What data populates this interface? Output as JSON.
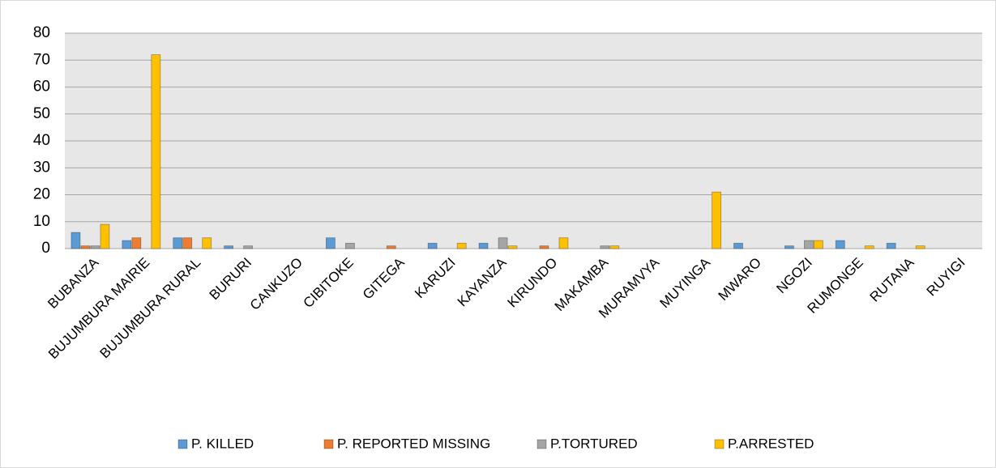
{
  "chart_data": {
    "type": "bar",
    "categories": [
      "BUBANZA",
      "BUJUMBURA MAIRIE",
      "BUJUMBURA RURAL",
      "BURURI",
      "CANKUZO",
      "CIBITOKE",
      "GITEGA",
      "KARUZI",
      "KAYANZA",
      "KIRUNDO",
      "MAKAMBA",
      "MURAMVYA",
      "MUYINGA",
      "MWARO",
      "NGOZI",
      "RUMONGE",
      "RUTANA",
      "RUYIGI"
    ],
    "series": [
      {
        "name": "P. KILLED",
        "color": "#5b9bd5",
        "values": [
          6,
          3,
          4,
          1,
          0,
          4,
          0,
          2,
          2,
          0,
          0,
          0,
          0,
          2,
          1,
          3,
          2,
          0
        ]
      },
      {
        "name": "P. REPORTED MISSING",
        "color": "#ed7d31",
        "values": [
          1,
          4,
          4,
          0,
          0,
          0,
          1,
          0,
          0,
          1,
          0,
          0,
          0,
          0,
          0,
          0,
          0,
          0
        ]
      },
      {
        "name": "P.TORTURED",
        "color": "#a5a5a5",
        "values": [
          1,
          0,
          0,
          1,
          0,
          2,
          0,
          0,
          4,
          0,
          1,
          0,
          0,
          0,
          3,
          0,
          0,
          0
        ]
      },
      {
        "name": "P.ARRESTED",
        "color": "#ffc000",
        "values": [
          9,
          72,
          4,
          0,
          0,
          0,
          0,
          2,
          1,
          4,
          1,
          0,
          21,
          0,
          3,
          1,
          1,
          0
        ]
      }
    ],
    "ylim": [
      0,
      80
    ],
    "yticks": [
      0,
      10,
      20,
      30,
      40,
      50,
      60,
      70,
      80
    ],
    "grid": true,
    "legend": "bottom"
  }
}
